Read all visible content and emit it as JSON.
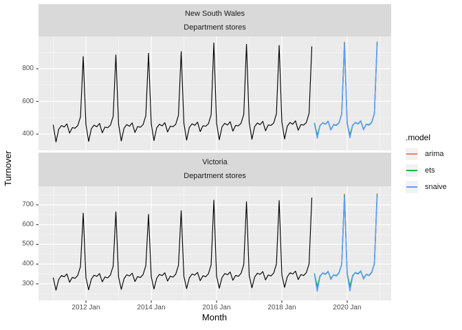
{
  "chart_data": {
    "type": "line",
    "title": "",
    "xlabel": "Month",
    "ylabel": "Turnover",
    "x_unit": "month_index_from_2011_Jan",
    "xlim": [
      -5.43,
      124.17
    ],
    "grid": true,
    "panel_bg": "#EBEBEB",
    "strip_bg": "#D9D9D9",
    "x_ticks": [
      {
        "m": 12,
        "label": "2012 Jan"
      },
      {
        "m": 36,
        "label": "2014 Jan"
      },
      {
        "m": 60,
        "label": "2016 Jan"
      },
      {
        "m": 84,
        "label": "2018 Jan"
      },
      {
        "m": 108,
        "label": "2020 Jan"
      }
    ],
    "x_minor": [
      0,
      24,
      48,
      72,
      96,
      120
    ],
    "legend": {
      "title": ".model",
      "position": "right",
      "entries": [
        {
          "label": "arima",
          "color": "#F8766D"
        },
        {
          "label": "ets",
          "color": "#00BA38"
        },
        {
          "label": "snaive",
          "color": "#619CFF"
        }
      ]
    },
    "panels": [
      {
        "facet_row": "New South Wales",
        "facet_col": "Department stores",
        "ylim": [
          299,
          998
        ],
        "y_ticks": [
          400,
          600,
          800
        ],
        "y_minor": [
          300,
          500,
          700,
          900
        ],
        "series": [
          {
            "name": "data",
            "color": "#000000",
            "width": 1.15,
            "t0": 0,
            "start_label": "2011 Jan",
            "values": [
              455,
              352,
              430,
              452,
              443,
              462,
              406,
              440,
              436,
              452,
              505,
              875,
              458,
              355,
              433,
              455,
              445,
              465,
              408,
              443,
              439,
              455,
              508,
              885,
              460,
              358,
              436,
              458,
              448,
              468,
              410,
              446,
              442,
              458,
              512,
              895,
              463,
              360,
              438,
              460,
              450,
              470,
              413,
              448,
              445,
              460,
              515,
              905,
              466,
              363,
              441,
              463,
              453,
              473,
              415,
              451,
              448,
              463,
              518,
              958,
              468,
              365,
              444,
              466,
              455,
              476,
              418,
              453,
              450,
              466,
              521,
              950,
              471,
              368,
              446,
              468,
              458,
              478,
              420,
              456,
              453,
              468,
              524,
              943,
              474,
              370,
              449,
              471,
              460,
              481,
              423,
              458,
              455,
              471,
              527,
              935
            ]
          },
          {
            "name": "arima",
            "color": "#F8766D",
            "width": 1.5,
            "t0": 96,
            "start_label": "2019 Jan",
            "values": [
              464,
              385,
              451,
              469,
              460,
              478,
              426,
              458,
              454,
              469,
              525,
              963,
              466,
              387,
              453,
              471,
              462,
              480,
              428,
              460,
              456,
              471,
              527,
              965
            ]
          },
          {
            "name": "ets",
            "color": "#00BA38",
            "width": 1.5,
            "t0": 96,
            "start_label": "2019 Jan",
            "values": [
              466,
              392,
              452,
              468,
              460,
              477,
              428,
              457,
              453,
              468,
              524,
              956,
              468,
              394,
              454,
              470,
              462,
              479,
              430,
              459,
              455,
              470,
              526,
              958
            ]
          },
          {
            "name": "snaive",
            "color": "#619CFF",
            "width": 1.5,
            "t0": 96,
            "start_label": "2019 Jan",
            "values": [
              462,
              375,
              450,
              470,
              461,
              480,
              424,
              459,
              456,
              470,
              526,
              950,
              464,
              377,
              452,
              472,
              463,
              482,
              426,
              461,
              458,
              472,
              528,
              952
            ]
          }
        ]
      },
      {
        "facet_row": "Victoria",
        "facet_col": "Department stores",
        "ylim": [
          216,
          794
        ],
        "y_ticks": [
          300,
          400,
          500,
          600,
          700
        ],
        "y_minor": [
          250,
          350,
          450,
          550,
          650,
          750
        ],
        "series": [
          {
            "name": "data",
            "color": "#000000",
            "width": 1.15,
            "t0": 0,
            "start_label": "2011 Jan",
            "values": [
              330,
              268,
              322,
              342,
              336,
              350,
              308,
              333,
              328,
              343,
              388,
              658,
              332,
              270,
              324,
              344,
              338,
              352,
              310,
              335,
              330,
              345,
              390,
              665,
              334,
              272,
              326,
              346,
              340,
              354,
              312,
              337,
              332,
              347,
              392,
              652,
              336,
              274,
              328,
              348,
              342,
              356,
              314,
              339,
              334,
              349,
              394,
              670,
              338,
              276,
              330,
              350,
              344,
              358,
              316,
              341,
              336,
              351,
              396,
              724,
              340,
              278,
              332,
              352,
              346,
              360,
              318,
              343,
              338,
              353,
              398,
              716,
              342,
              280,
              334,
              354,
              348,
              362,
              320,
              345,
              340,
              355,
              400,
              722,
              344,
              282,
              336,
              356,
              350,
              364,
              322,
              347,
              342,
              357,
              402,
              735
            ]
          },
          {
            "name": "arima",
            "color": "#F8766D",
            "width": 1.5,
            "t0": 96,
            "start_label": "2019 Jan",
            "values": [
              348,
              278,
              338,
              355,
              349,
              362,
              325,
              346,
              341,
              356,
              401,
              755,
              350,
              280,
              340,
              357,
              351,
              364,
              327,
              348,
              343,
              358,
              403,
              757
            ]
          },
          {
            "name": "ets",
            "color": "#00BA38",
            "width": 1.5,
            "t0": 96,
            "start_label": "2019 Jan",
            "values": [
              350,
              286,
              340,
              354,
              348,
              361,
              328,
              345,
              340,
              355,
              400,
              748,
              352,
              288,
              342,
              356,
              350,
              363,
              330,
              347,
              342,
              357,
              402,
              750
            ]
          },
          {
            "name": "snaive",
            "color": "#619CFF",
            "width": 1.5,
            "t0": 96,
            "start_label": "2019 Jan",
            "values": [
              346,
              262,
              336,
              356,
              350,
              364,
              322,
              347,
              342,
              357,
              402,
              740,
              348,
              264,
              338,
              358,
              352,
              366,
              324,
              349,
              344,
              359,
              404,
              742
            ]
          }
        ]
      }
    ]
  }
}
